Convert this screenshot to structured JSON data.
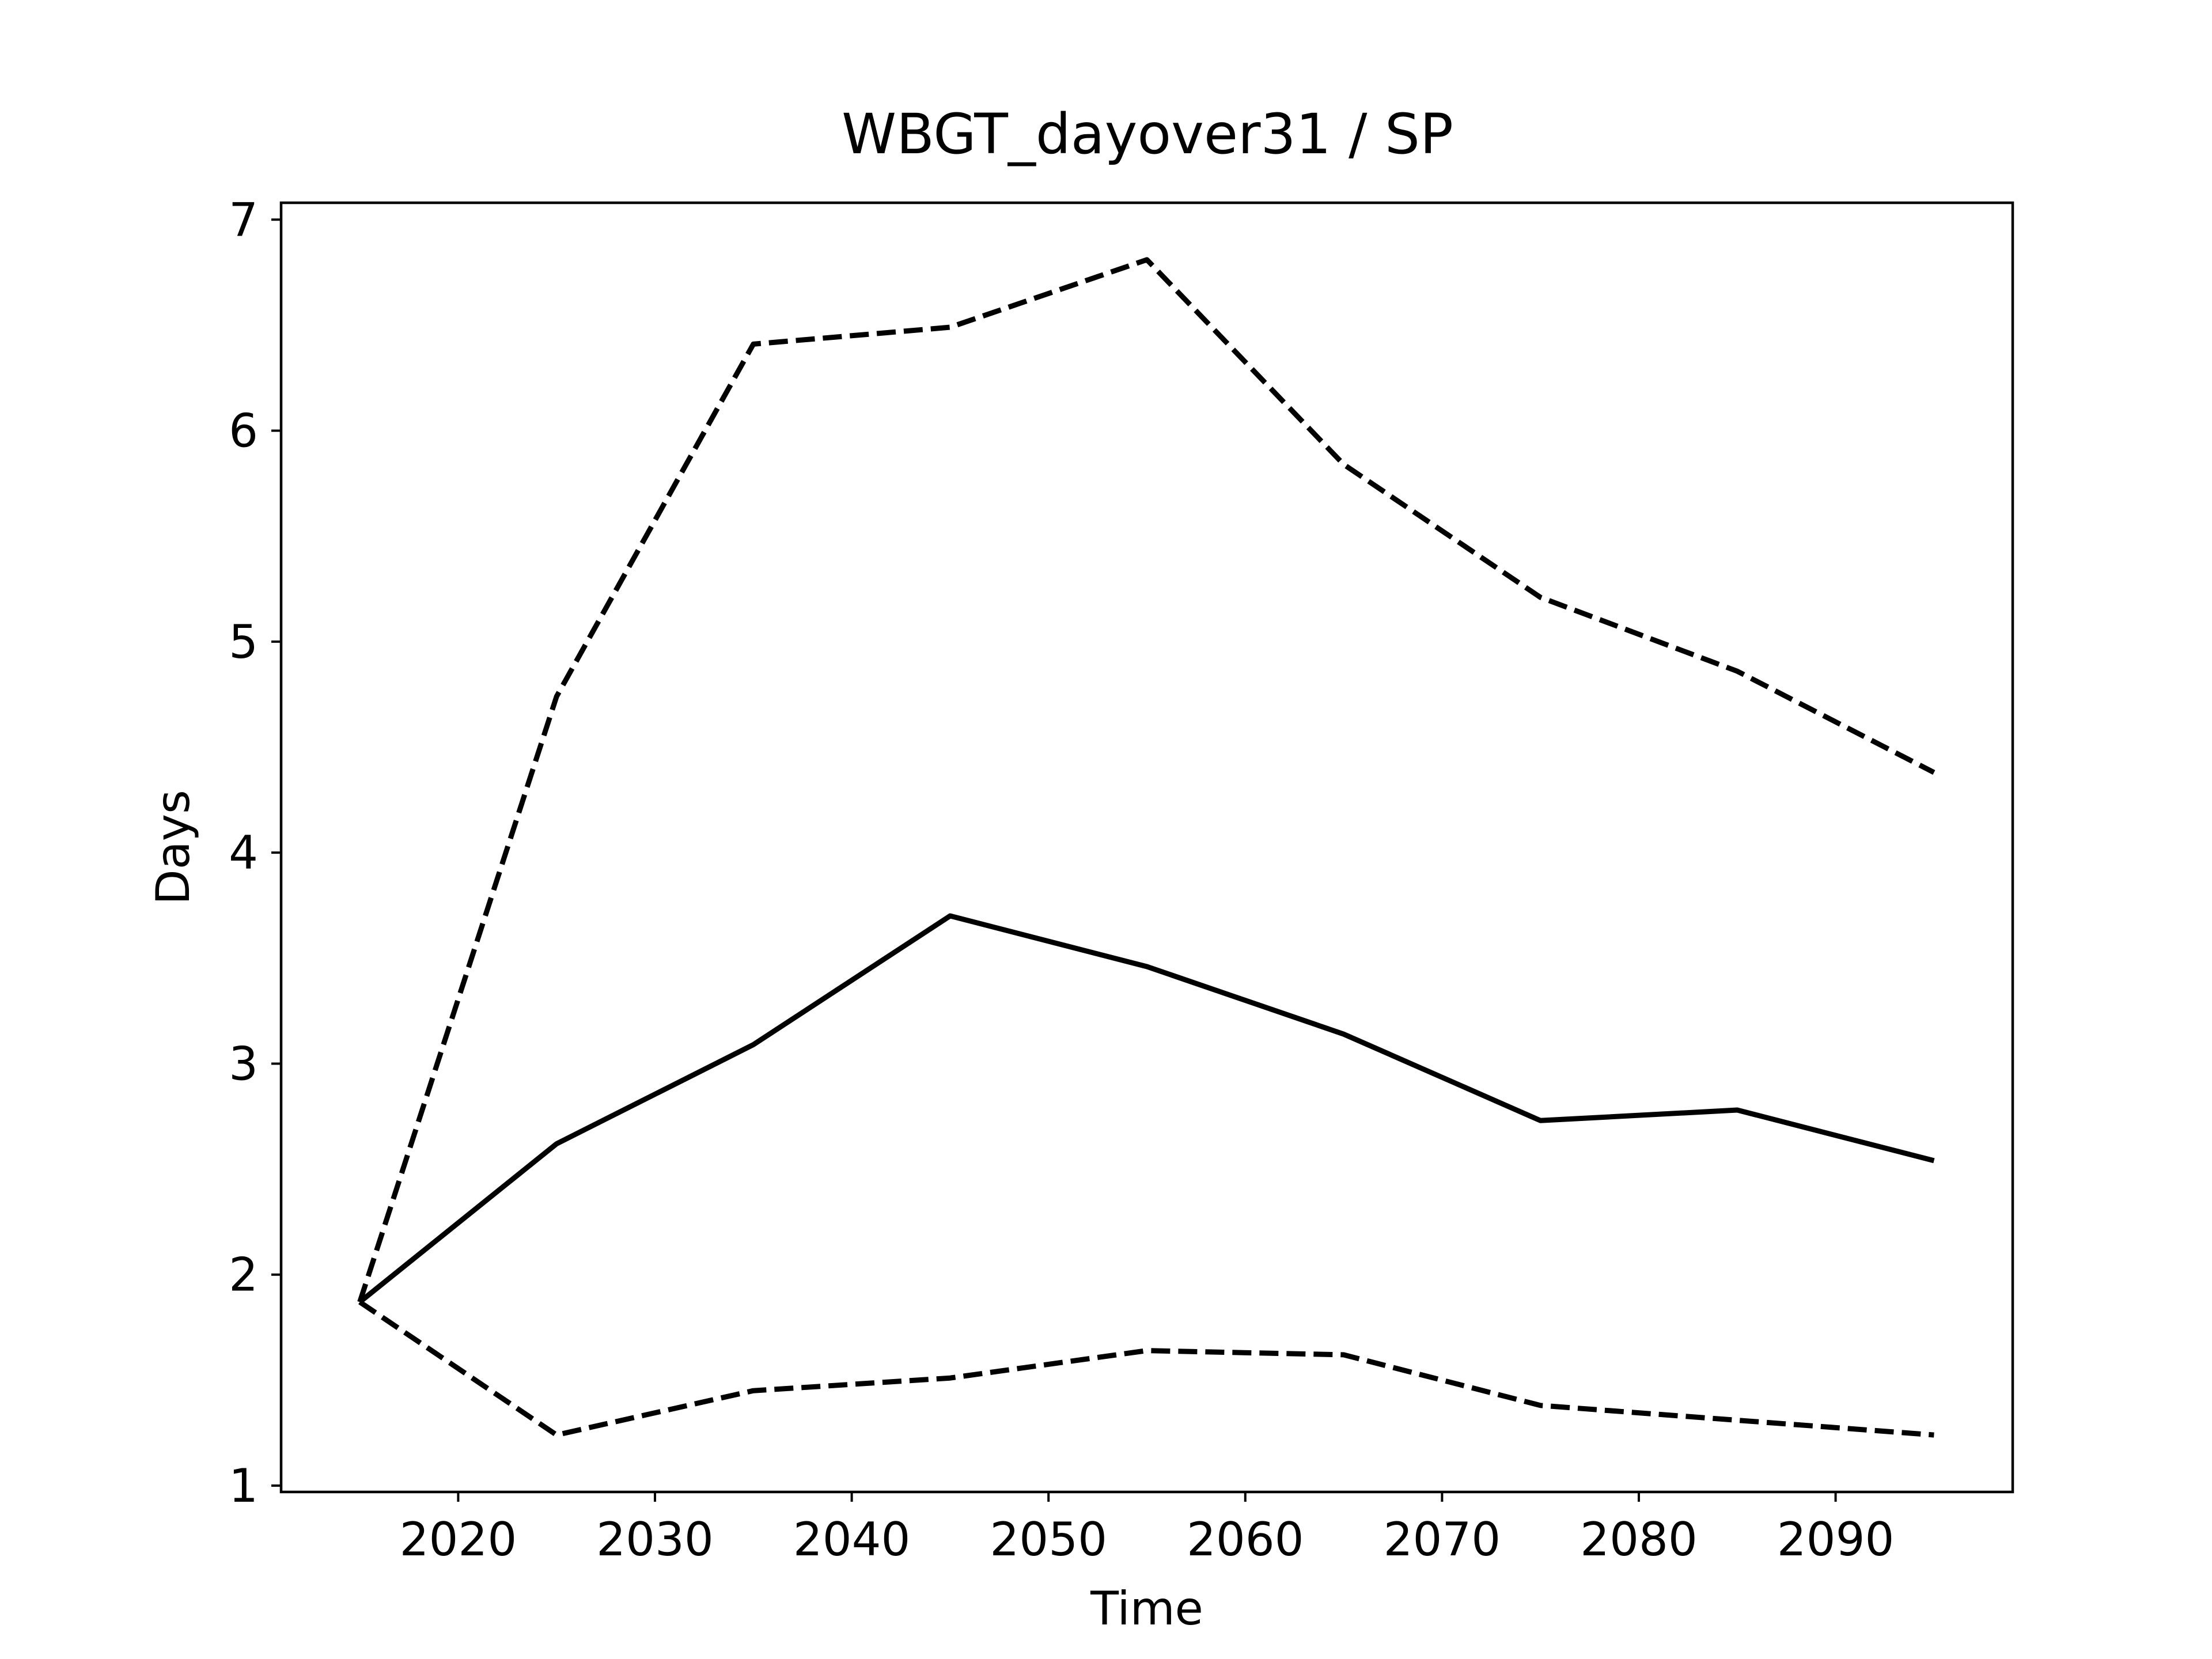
{
  "chart_data": {
    "type": "line",
    "title": "WBGT_dayover31 / SP",
    "xlabel": "Time",
    "ylabel": "Days",
    "x": [
      2015,
      2025,
      2035,
      2045,
      2055,
      2065,
      2075,
      2085,
      2095
    ],
    "xlim": [
      2011,
      2099
    ],
    "ylim": [
      0.97,
      7.08
    ],
    "xticks": [
      2020,
      2030,
      2040,
      2050,
      2060,
      2070,
      2080,
      2090
    ],
    "yticks": [
      1,
      2,
      3,
      4,
      5,
      6,
      7
    ],
    "grid": false,
    "series": [
      {
        "style": "solid",
        "color": "#000000",
        "values": [
          1.87,
          2.62,
          3.09,
          3.7,
          3.46,
          3.14,
          2.73,
          2.78,
          2.54
        ]
      },
      {
        "style": "dashed",
        "color": "#000000",
        "values": [
          1.87,
          4.74,
          6.41,
          6.49,
          6.81,
          5.84,
          5.21,
          4.86,
          4.38
        ]
      },
      {
        "style": "dashed",
        "color": "#000000",
        "values": [
          1.87,
          1.24,
          1.45,
          1.51,
          1.64,
          1.62,
          1.38,
          1.31,
          1.24
        ]
      }
    ]
  }
}
